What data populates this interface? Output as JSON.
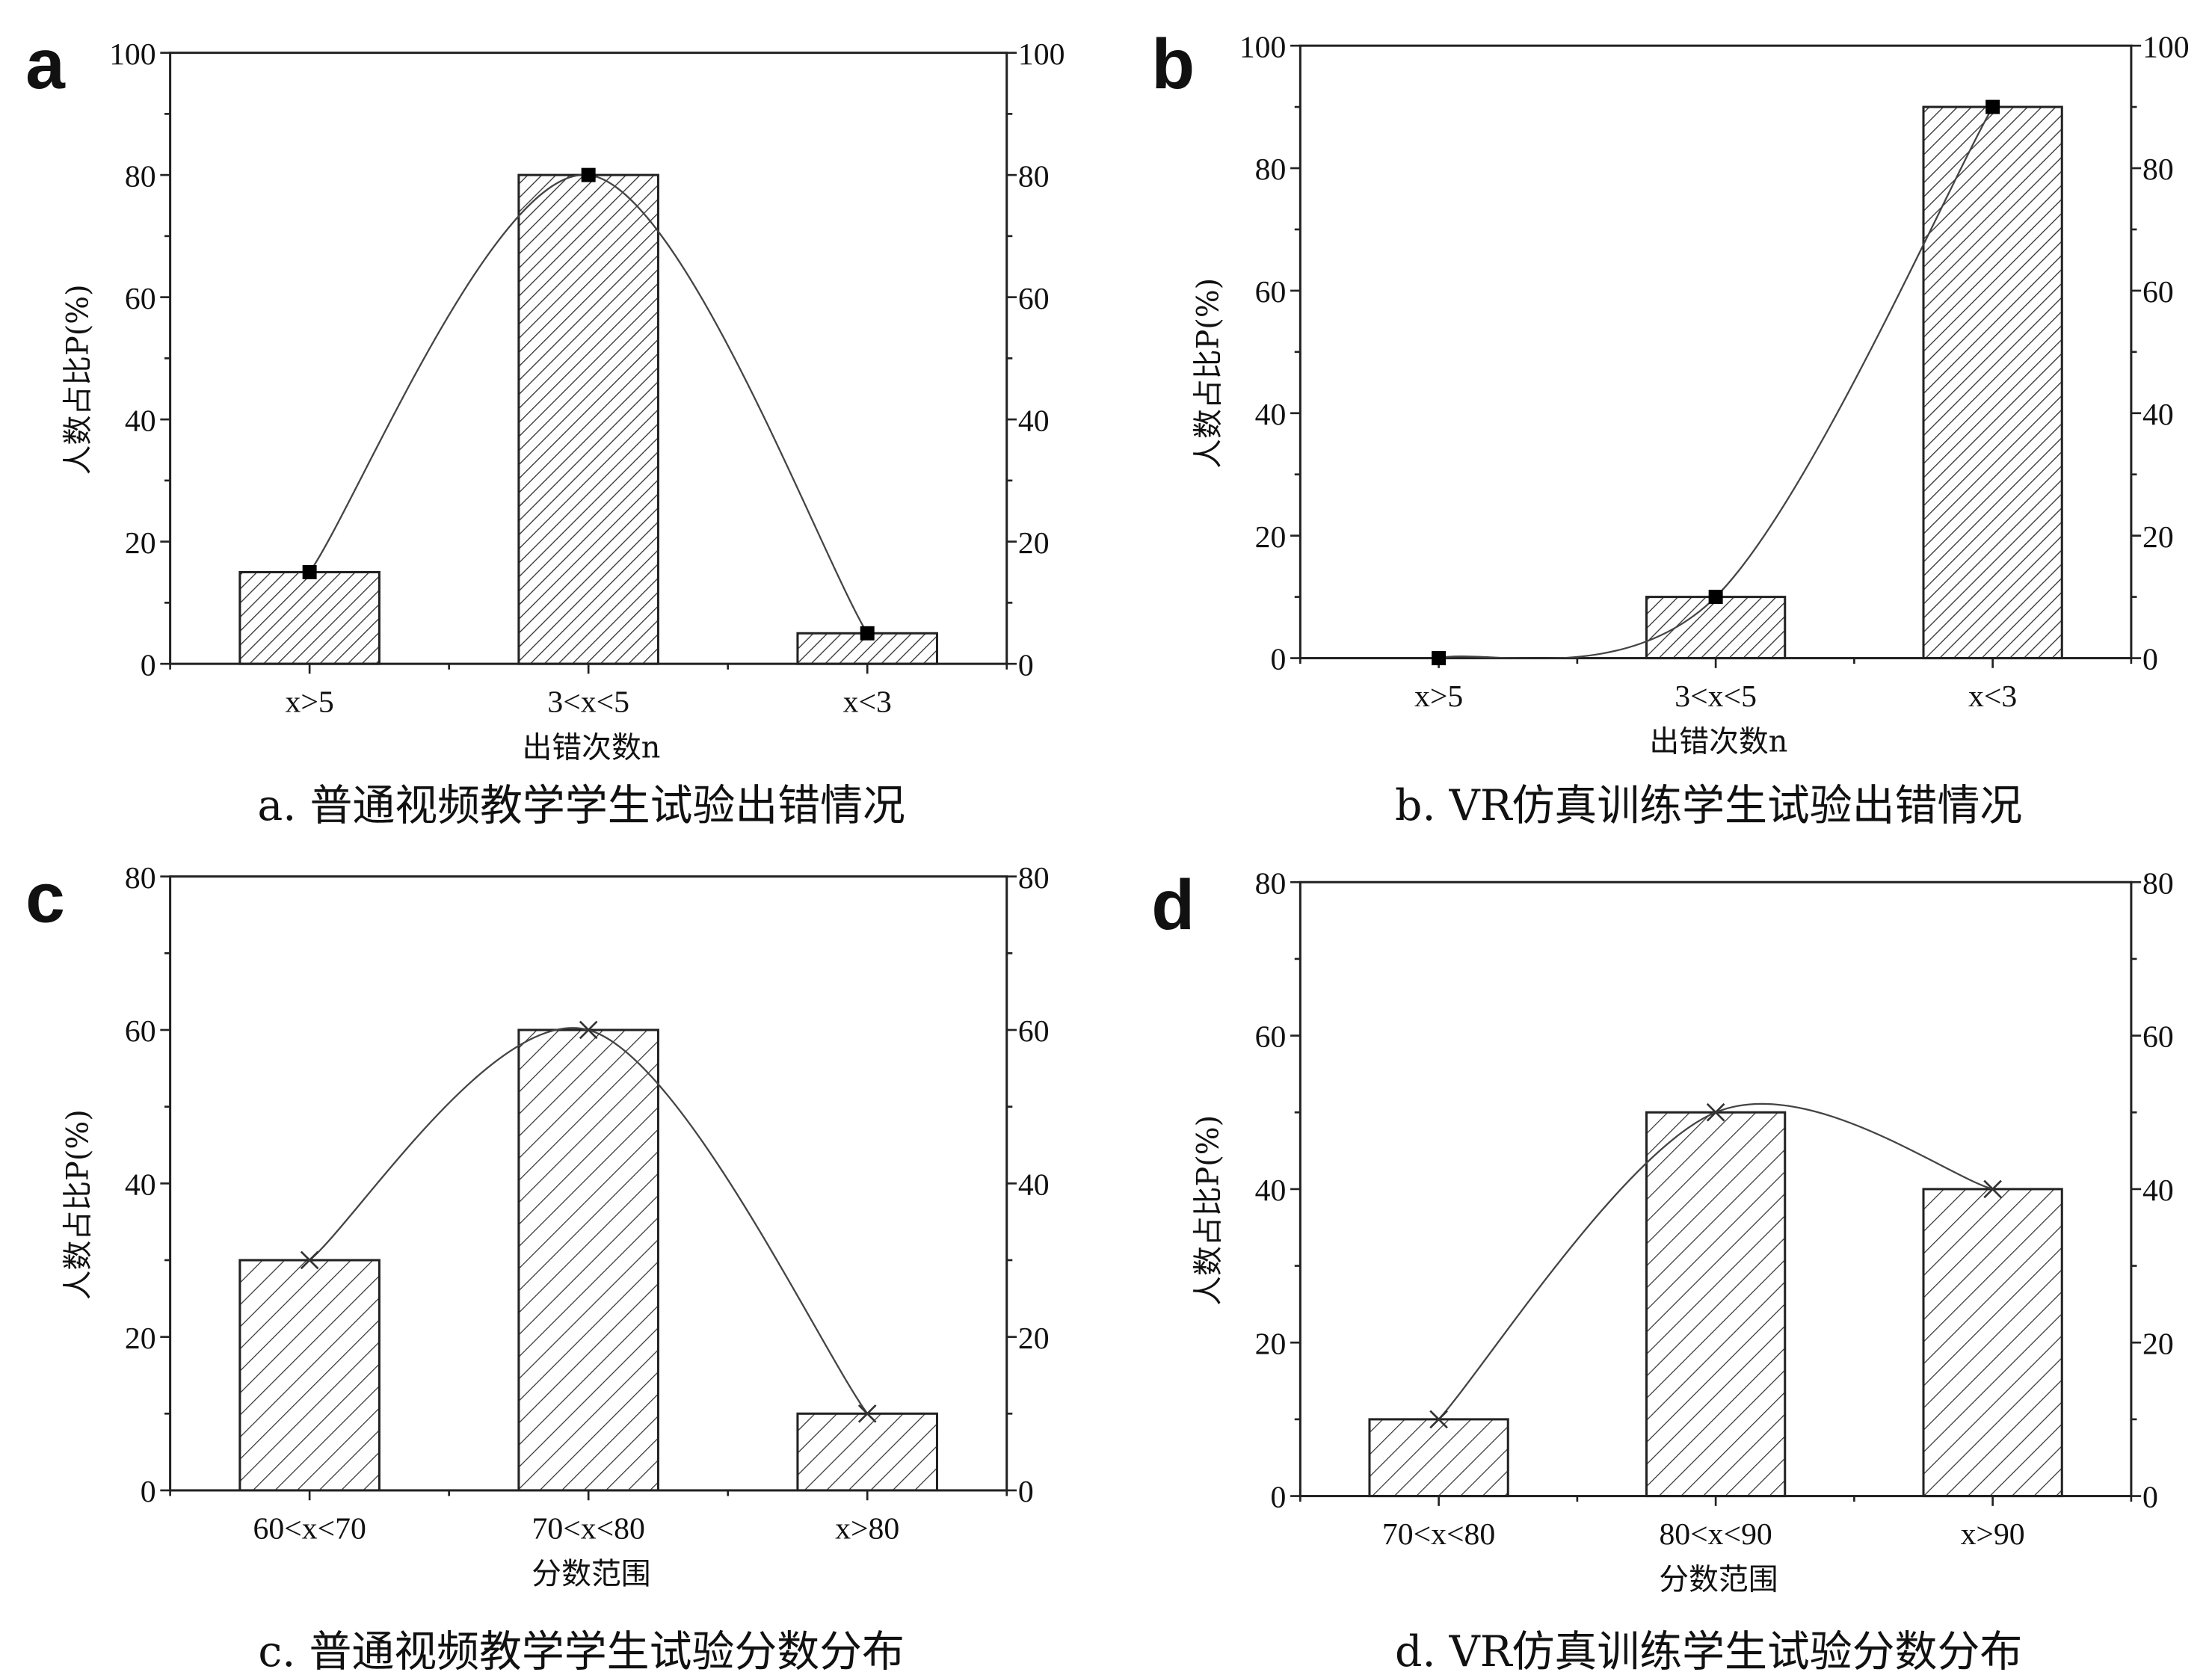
{
  "chart_data": [
    {
      "type": "bar",
      "panel_label": "a",
      "caption": "a. 普通视频教学学生试验出错情况",
      "categories": [
        "x>5",
        "3<x<5",
        "x<3"
      ],
      "values": [
        15,
        80,
        5
      ],
      "line_values": [
        15,
        80,
        5
      ],
      "marker": "square",
      "xlabel": "出错次数n",
      "ylabel": "人数占比P(%)",
      "ylim": [
        0,
        100
      ],
      "yticks": [
        0,
        20,
        40,
        60,
        80,
        100
      ],
      "minor_step": 10
    },
    {
      "type": "bar",
      "panel_label": "b",
      "caption": "b. VR仿真训练学生试验出错情况",
      "categories": [
        "x>5",
        "3<x<5",
        "x<3"
      ],
      "values": [
        0,
        10,
        90
      ],
      "line_values": [
        0,
        10,
        90
      ],
      "marker": "square",
      "xlabel": "出错次数n",
      "ylabel": "人数占比P(%)",
      "ylim": [
        0,
        100
      ],
      "yticks": [
        0,
        20,
        40,
        60,
        80,
        100
      ],
      "minor_step": 10
    },
    {
      "type": "bar",
      "panel_label": "c",
      "caption": "c. 普通视频教学学生试验分数分布",
      "categories": [
        "60<x<70",
        "70<x<80",
        "x>80"
      ],
      "values": [
        30,
        60,
        10
      ],
      "line_values": [
        30,
        60,
        10
      ],
      "marker": "x",
      "xlabel": "分数范围",
      "ylabel": "人数占比P(%)",
      "ylim": [
        0,
        80
      ],
      "yticks": [
        0,
        20,
        40,
        60,
        80
      ],
      "minor_step": 10
    },
    {
      "type": "bar",
      "panel_label": "d",
      "caption": "d. VR仿真训练学生试验分数分布",
      "categories": [
        "70<x<80",
        "80<x<90",
        "x>90"
      ],
      "values": [
        10,
        50,
        40
      ],
      "line_values": [
        10,
        50,
        40
      ],
      "marker": "x",
      "xlabel": "分数范围",
      "ylabel": "人数占比P(%)",
      "ylim": [
        0,
        80
      ],
      "yticks": [
        0,
        20,
        40,
        60,
        80
      ],
      "minor_step": 10
    }
  ]
}
